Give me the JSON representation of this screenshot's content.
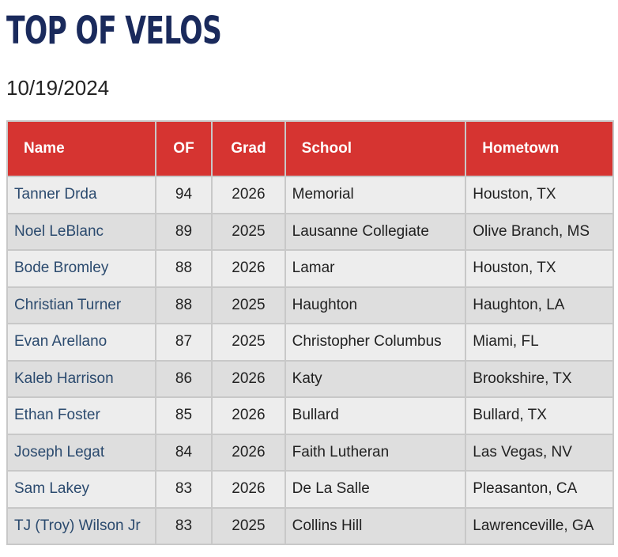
{
  "page": {
    "title": "TOP OF VELOS",
    "date": "10/19/2024"
  },
  "table": {
    "headers": [
      "Name",
      "OF",
      "Grad",
      "School",
      "Hometown"
    ],
    "rows": [
      [
        "Tanner Drda",
        "94",
        "2026",
        "Memorial",
        "Houston, TX"
      ],
      [
        "Noel LeBlanc",
        "89",
        "2025",
        "Lausanne Collegiate",
        "Olive Branch, MS"
      ],
      [
        "Bode Bromley",
        "88",
        "2026",
        "Lamar",
        "Houston, TX"
      ],
      [
        "Christian Turner",
        "88",
        "2025",
        "Haughton",
        "Haughton, LA"
      ],
      [
        "Evan Arellano",
        "87",
        "2025",
        "Christopher Columbus",
        "Miami, FL"
      ],
      [
        "Kaleb Harrison",
        "86",
        "2026",
        "Katy",
        "Brookshire, TX"
      ],
      [
        "Ethan Foster",
        "85",
        "2026",
        "Bullard",
        "Bullard, TX"
      ],
      [
        "Joseph Legat",
        "84",
        "2026",
        "Faith Lutheran",
        "Las Vegas, NV"
      ],
      [
        "Sam Lakey",
        "83",
        "2026",
        "De La Salle",
        "Pleasanton, CA"
      ],
      [
        "TJ (Troy) Wilson Jr",
        "83",
        "2025",
        "Collins Hill",
        "Lawrenceville, GA"
      ]
    ]
  },
  "colors": {
    "title": "#1a2a5c",
    "header_bg": "#d63431",
    "name_link": "#2b4a6e"
  }
}
